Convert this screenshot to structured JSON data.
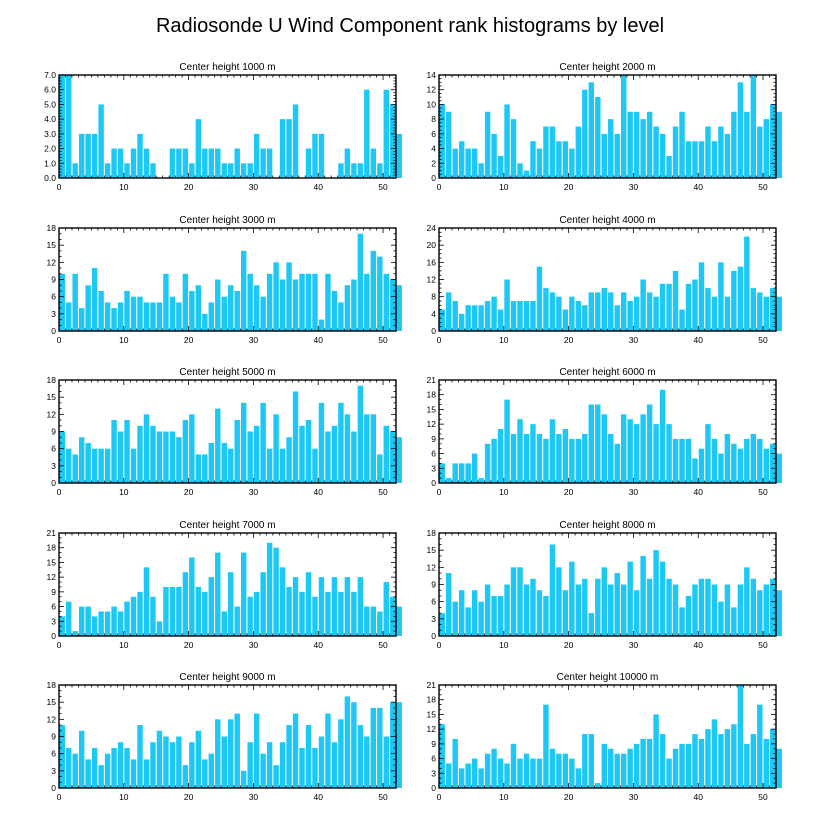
{
  "title": "Radiosonde U Wind Component rank histograms by level",
  "colors": {
    "bar": "#1ec8f5",
    "frame": "#000000",
    "background": "#ffffff"
  },
  "chart_data": [
    {
      "type": "bar",
      "title": "Center height 1000 m",
      "xlim": [
        0,
        52
      ],
      "ylim": [
        0,
        7
      ],
      "xticks": [
        0,
        10,
        20,
        30,
        40,
        50
      ],
      "yticks": [
        0,
        1,
        2,
        3,
        4,
        5,
        6,
        7
      ],
      "ytick_labels": [
        "0.0",
        "1.0",
        "2.0",
        "3.0",
        "4.0",
        "5.0",
        "6.0",
        "7.0"
      ],
      "values": [
        7,
        7,
        1,
        3,
        3,
        3,
        5,
        1,
        2,
        2,
        1,
        2,
        3,
        2,
        1,
        0,
        0,
        2,
        2,
        2,
        1,
        4,
        2,
        2,
        2,
        1,
        1,
        2,
        1,
        1,
        3,
        2,
        2,
        0,
        4,
        4,
        5,
        0,
        2,
        3,
        3,
        0,
        0,
        1,
        2,
        1,
        1,
        6,
        2,
        1,
        6,
        5,
        3
      ]
    },
    {
      "type": "bar",
      "title": "Center height 2000 m",
      "xlim": [
        0,
        52
      ],
      "ylim": [
        0,
        14
      ],
      "xticks": [
        0,
        10,
        20,
        30,
        40,
        50
      ],
      "yticks": [
        0,
        2,
        4,
        6,
        8,
        10,
        12,
        14
      ],
      "ytick_labels": [
        "0",
        "2",
        "4",
        "6",
        "8",
        "10",
        "12",
        "14"
      ],
      "values": [
        10,
        9,
        4,
        5,
        4,
        4,
        2,
        9,
        6,
        3,
        10,
        8,
        2,
        1,
        5,
        4,
        7,
        7,
        5,
        5,
        4,
        7,
        12,
        13,
        11,
        6,
        8,
        6,
        14,
        9,
        9,
        8,
        9,
        7,
        6,
        3,
        7,
        9,
        5,
        5,
        5,
        7,
        5,
        7,
        6,
        9,
        13,
        9,
        14,
        7,
        8,
        10,
        9
      ]
    },
    {
      "type": "bar",
      "title": "Center height 3000 m",
      "xlim": [
        0,
        52
      ],
      "ylim": [
        0,
        18
      ],
      "xticks": [
        0,
        10,
        20,
        30,
        40,
        50
      ],
      "yticks": [
        0,
        3,
        6,
        9,
        12,
        15,
        18
      ],
      "ytick_labels": [
        "0",
        "3",
        "6",
        "9",
        "12",
        "15",
        "18"
      ],
      "values": [
        10,
        5,
        10,
        4,
        8,
        11,
        7,
        5,
        4,
        5,
        7,
        6,
        6,
        5,
        5,
        5,
        10,
        6,
        5,
        10,
        7,
        8,
        3,
        5,
        9,
        6,
        8,
        7,
        14,
        10,
        8,
        6,
        10,
        12,
        9,
        12,
        9,
        10,
        10,
        10,
        2,
        10,
        7,
        5,
        8,
        9,
        17,
        10,
        14,
        13,
        10,
        9,
        8
      ]
    },
    {
      "type": "bar",
      "title": "Center height 4000 m",
      "xlim": [
        0,
        52
      ],
      "ylim": [
        0,
        24
      ],
      "xticks": [
        0,
        10,
        20,
        30,
        40,
        50
      ],
      "yticks": [
        0,
        4,
        8,
        12,
        16,
        20,
        24
      ],
      "ytick_labels": [
        "0",
        "4",
        "8",
        "12",
        "16",
        "20",
        "24"
      ],
      "values": [
        5,
        9,
        7,
        4,
        6,
        6,
        6,
        7,
        8,
        5,
        12,
        7,
        7,
        7,
        7,
        15,
        10,
        9,
        8,
        5,
        8,
        7,
        6,
        9,
        9,
        10,
        9,
        6,
        9,
        7,
        8,
        12,
        9,
        8,
        11,
        11,
        14,
        5,
        11,
        12,
        16,
        10,
        8,
        16,
        8,
        14,
        15,
        22,
        10,
        9,
        8,
        10,
        8
      ]
    },
    {
      "type": "bar",
      "title": "Center height 5000 m",
      "xlim": [
        0,
        52
      ],
      "ylim": [
        0,
        18
      ],
      "xticks": [
        0,
        10,
        20,
        30,
        40,
        50
      ],
      "yticks": [
        0,
        3,
        6,
        9,
        12,
        15,
        18
      ],
      "ytick_labels": [
        "0",
        "3",
        "6",
        "9",
        "12",
        "15",
        "18"
      ],
      "values": [
        9,
        6,
        5,
        8,
        7,
        6,
        6,
        6,
        11,
        9,
        11,
        6,
        10,
        12,
        10,
        9,
        9,
        9,
        8,
        11,
        12,
        5,
        5,
        7,
        13,
        7,
        6,
        11,
        14,
        9,
        10,
        14,
        6,
        12,
        6,
        8,
        16,
        10,
        11,
        6,
        14,
        9,
        10,
        14,
        12,
        9,
        17,
        12,
        12,
        5,
        10,
        9,
        8
      ]
    },
    {
      "type": "bar",
      "title": "Center height 6000 m",
      "xlim": [
        0,
        52
      ],
      "ylim": [
        0,
        21
      ],
      "xticks": [
        0,
        10,
        20,
        30,
        40,
        50
      ],
      "yticks": [
        0,
        3,
        6,
        9,
        12,
        15,
        18,
        21
      ],
      "ytick_labels": [
        "0",
        "3",
        "6",
        "9",
        "12",
        "15",
        "18",
        "21"
      ],
      "values": [
        4,
        1,
        4,
        4,
        4,
        6,
        1,
        8,
        9,
        11,
        17,
        10,
        13,
        10,
        12,
        10,
        9,
        13,
        10,
        11,
        9,
        9,
        10,
        16,
        16,
        14,
        10,
        8,
        14,
        13,
        12,
        14,
        16,
        12,
        19,
        12,
        9,
        9,
        9,
        5,
        7,
        12,
        9,
        6,
        10,
        8,
        7,
        9,
        10,
        9,
        7,
        8,
        6
      ]
    },
    {
      "type": "bar",
      "title": "Center height 7000 m",
      "xlim": [
        0,
        52
      ],
      "ylim": [
        0,
        21
      ],
      "xticks": [
        0,
        10,
        20,
        30,
        40,
        50
      ],
      "yticks": [
        0,
        3,
        6,
        9,
        12,
        15,
        18,
        21
      ],
      "ytick_labels": [
        "0",
        "3",
        "6",
        "9",
        "12",
        "15",
        "18",
        "21"
      ],
      "values": [
        4,
        7,
        1,
        6,
        6,
        4,
        5,
        5,
        6,
        5,
        7,
        8,
        9,
        14,
        8,
        3,
        10,
        10,
        10,
        13,
        16,
        10,
        9,
        12,
        17,
        5,
        13,
        6,
        17,
        8,
        9,
        13,
        19,
        18,
        14,
        10,
        12,
        9,
        13,
        8,
        12,
        9,
        12,
        9,
        12,
        9,
        12,
        6,
        6,
        5,
        11,
        8,
        6
      ]
    },
    {
      "type": "bar",
      "title": "Center height 8000 m",
      "xlim": [
        0,
        52
      ],
      "ylim": [
        0,
        18
      ],
      "xticks": [
        0,
        10,
        20,
        30,
        40,
        50
      ],
      "yticks": [
        0,
        3,
        6,
        9,
        12,
        15,
        18
      ],
      "ytick_labels": [
        "0",
        "3",
        "6",
        "9",
        "12",
        "15",
        "18"
      ],
      "values": [
        4,
        11,
        6,
        8,
        5,
        8,
        6,
        9,
        7,
        7,
        9,
        12,
        12,
        9,
        10,
        8,
        7,
        16,
        12,
        8,
        13,
        9,
        10,
        4,
        10,
        12,
        9,
        11,
        9,
        13,
        8,
        14,
        10,
        15,
        13,
        10,
        9,
        5,
        7,
        9,
        10,
        10,
        9,
        6,
        9,
        5,
        9,
        12,
        10,
        8,
        9,
        10,
        8
      ]
    },
    {
      "type": "bar",
      "title": "Center height 9000 m",
      "xlim": [
        0,
        52
      ],
      "ylim": [
        0,
        18
      ],
      "xticks": [
        0,
        10,
        20,
        30,
        40,
        50
      ],
      "yticks": [
        0,
        3,
        6,
        9,
        12,
        15,
        18
      ],
      "ytick_labels": [
        "0",
        "3",
        "6",
        "9",
        "12",
        "15",
        "18"
      ],
      "values": [
        11,
        7,
        6,
        10,
        5,
        7,
        4,
        6,
        7,
        8,
        7,
        5,
        11,
        5,
        8,
        10,
        9,
        8,
        9,
        4,
        8,
        10,
        5,
        6,
        12,
        9,
        12,
        13,
        3,
        8,
        13,
        6,
        8,
        4,
        8,
        11,
        13,
        7,
        11,
        7,
        9,
        13,
        8,
        12,
        16,
        15,
        11,
        9,
        14,
        14,
        9,
        15,
        15
      ]
    },
    {
      "type": "bar",
      "title": "Center height 10000 m",
      "xlim": [
        0,
        52
      ],
      "ylim": [
        0,
        21
      ],
      "xticks": [
        0,
        10,
        20,
        30,
        40,
        50
      ],
      "yticks": [
        0,
        3,
        6,
        9,
        12,
        15,
        18,
        21
      ],
      "ytick_labels": [
        "0",
        "3",
        "6",
        "9",
        "12",
        "15",
        "18",
        "21"
      ],
      "values": [
        13,
        5,
        10,
        4,
        5,
        6,
        4,
        7,
        8,
        6,
        5,
        9,
        6,
        7,
        6,
        6,
        17,
        8,
        7,
        7,
        6,
        4,
        11,
        11,
        1,
        9,
        8,
        7,
        7,
        8,
        9,
        10,
        10,
        15,
        11,
        6,
        8,
        9,
        9,
        11,
        10,
        12,
        14,
        11,
        12,
        13,
        21,
        9,
        11,
        17,
        10,
        12,
        8
      ]
    }
  ]
}
